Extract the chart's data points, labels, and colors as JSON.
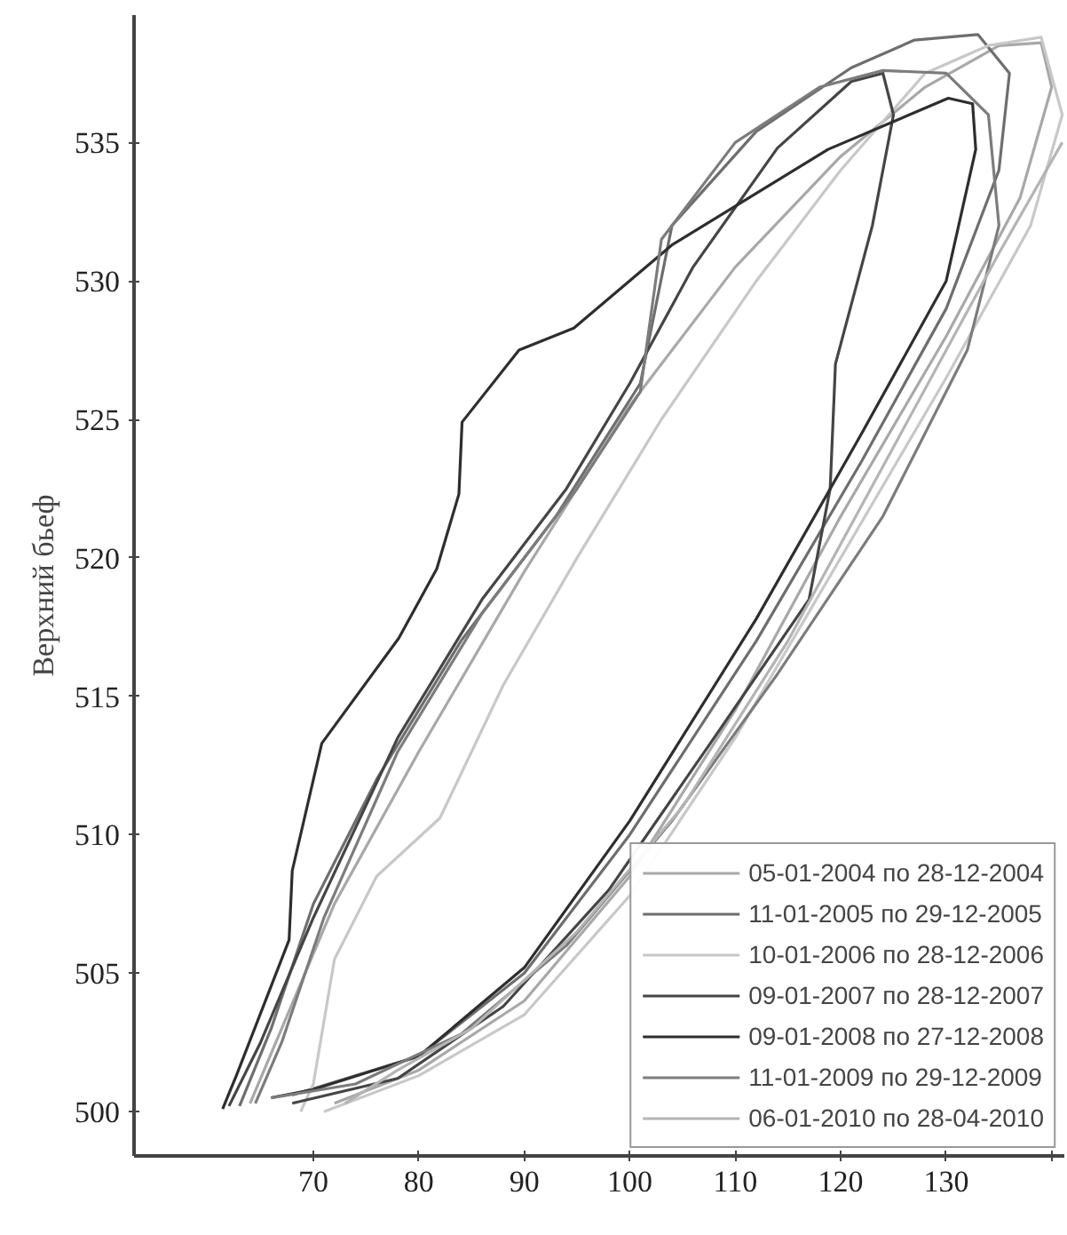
{
  "chart_data": {
    "type": "line",
    "ylabel": "Верхний бьеф",
    "xlim": [
      53,
      141.2
    ],
    "ylim": [
      498.4,
      539.6
    ],
    "xticks": [
      70,
      80,
      90,
      100,
      110,
      120,
      130,
      {
        "value": 140,
        "label": null
      }
    ],
    "yticks": [
      500,
      505,
      510,
      515,
      520,
      525,
      530,
      535
    ],
    "grid": false,
    "legend": "bottom right",
    "marker": "none",
    "line_style": "solid",
    "series": [
      {
        "name": "05-01-2004 по 28-12-2004",
        "color": "#a8a8a8",
        "x": [
          64,
          67,
          72,
          80,
          90,
          100,
          110,
          120,
          128,
          135,
          139,
          140,
          137,
          130,
          120,
          110,
          100,
          90,
          80,
          72
        ],
        "values": [
          500.3,
          503,
          507.5,
          513,
          519.5,
          525.5,
          530.5,
          534.5,
          537,
          538.5,
          538.6,
          537,
          533,
          528,
          521.5,
          514.5,
          508.5,
          504,
          501.5,
          500.3
        ]
      },
      {
        "name": "11-01-2005 по 29-12-2005",
        "color": "#6e6e6e",
        "x": [
          63,
          66,
          70,
          76,
          84,
          93,
          101,
          104,
          112,
          121,
          127,
          133,
          136,
          135,
          130,
          122,
          112,
          100,
          90,
          80,
          68
        ],
        "values": [
          500.2,
          503,
          507.5,
          512,
          517,
          521.5,
          526.3,
          532,
          535.4,
          537.7,
          538.7,
          538.9,
          537.5,
          534,
          529,
          523.5,
          517,
          510,
          505,
          502,
          500.6
        ]
      },
      {
        "name": "10-01-2006 по 28-12-2006",
        "color": "#c8c8c8",
        "x": [
          68.8,
          70,
          72,
          76,
          82,
          88,
          95,
          103,
          112,
          120,
          128,
          134,
          139,
          141,
          138,
          130,
          120,
          110,
          100,
          90,
          80,
          71
        ],
        "values": [
          500,
          501,
          505.5,
          508.5,
          510.6,
          515.4,
          520,
          525,
          530,
          534,
          537.5,
          538.5,
          538.8,
          536,
          532,
          526.5,
          520,
          513.5,
          507.8,
          503.5,
          501.3,
          500
        ]
      },
      {
        "name": "09-01-2007 по 28-12-2007",
        "color": "#454545",
        "x": [
          62,
          65,
          70,
          78,
          86,
          94,
          100,
          106,
          114,
          121,
          124,
          125,
          123,
          119.5,
          119,
          117,
          108,
          98,
          88,
          78,
          68
        ],
        "values": [
          500.2,
          502.5,
          507,
          513.5,
          518.5,
          522.5,
          526.3,
          530.5,
          534.8,
          537.2,
          537.5,
          536,
          532,
          527,
          522.5,
          518.5,
          513.5,
          508,
          503.8,
          501.2,
          500.3
        ]
      },
      {
        "name": "09-01-2008 по 27-12-2008",
        "color": "#2e2e2e",
        "x": [
          61.4,
          62.7,
          67.7,
          68,
          70.8,
          78.1,
          81.7,
          83.8,
          84.1,
          89.5,
          94.7,
          104,
          118.8,
          130.2,
          132.5,
          132.8,
          130,
          122,
          112,
          100,
          90,
          80,
          70,
          66
        ],
        "values": [
          500.1,
          501.3,
          506.2,
          508.7,
          513.3,
          517.1,
          519.6,
          522.3,
          524.9,
          527.5,
          528.3,
          531.3,
          534.75,
          536.6,
          536.4,
          534.75,
          530,
          524.5,
          517.8,
          510.5,
          505.2,
          502,
          500.8,
          500.5
        ]
      },
      {
        "name": "11-01-2009 по 29-12-2009",
        "color": "#7c7c7c",
        "x": [
          64.5,
          67,
          71,
          78,
          86,
          95,
          101,
          103,
          110,
          118,
          124,
          130,
          134,
          135,
          132,
          124,
          114,
          104,
          94,
          84,
          74,
          66
        ],
        "values": [
          500.3,
          502.5,
          507,
          513,
          518,
          522.5,
          526,
          531.5,
          535,
          537,
          537.6,
          537.5,
          536,
          532,
          527.5,
          521.5,
          515.8,
          510.5,
          506,
          502.8,
          501,
          500.5
        ]
      },
      {
        "name": "06-01-2010 по 28-04-2010",
        "color": "#b4b4b4",
        "x": [
          141,
          135,
          125,
          115,
          105,
          95,
          85,
          78,
          73
        ],
        "values": [
          535,
          531,
          524,
          517,
          511,
          506.5,
          503,
          501.5,
          500.3
        ]
      }
    ]
  }
}
